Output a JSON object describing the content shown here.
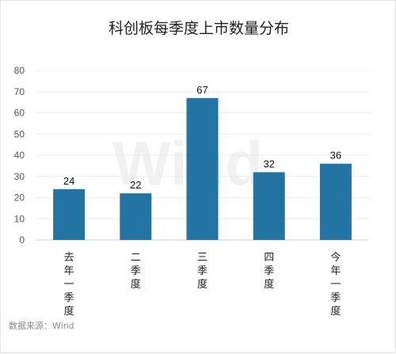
{
  "chart_data": {
    "type": "bar",
    "title": "科创板每季度上市数量分布",
    "categories": [
      "去年一季度",
      "二季度",
      "三季度",
      "四季度",
      "今年一季度"
    ],
    "values": [
      24,
      22,
      67,
      32,
      36
    ],
    "ylim": [
      0,
      80
    ],
    "yticks": [
      0,
      10,
      20,
      30,
      40,
      50,
      60,
      70,
      80
    ],
    "grid": true,
    "bar_color": "#2374a3",
    "xlabel": "",
    "ylabel": ""
  },
  "watermark": "Wind",
  "source": "数据来源：Wind"
}
